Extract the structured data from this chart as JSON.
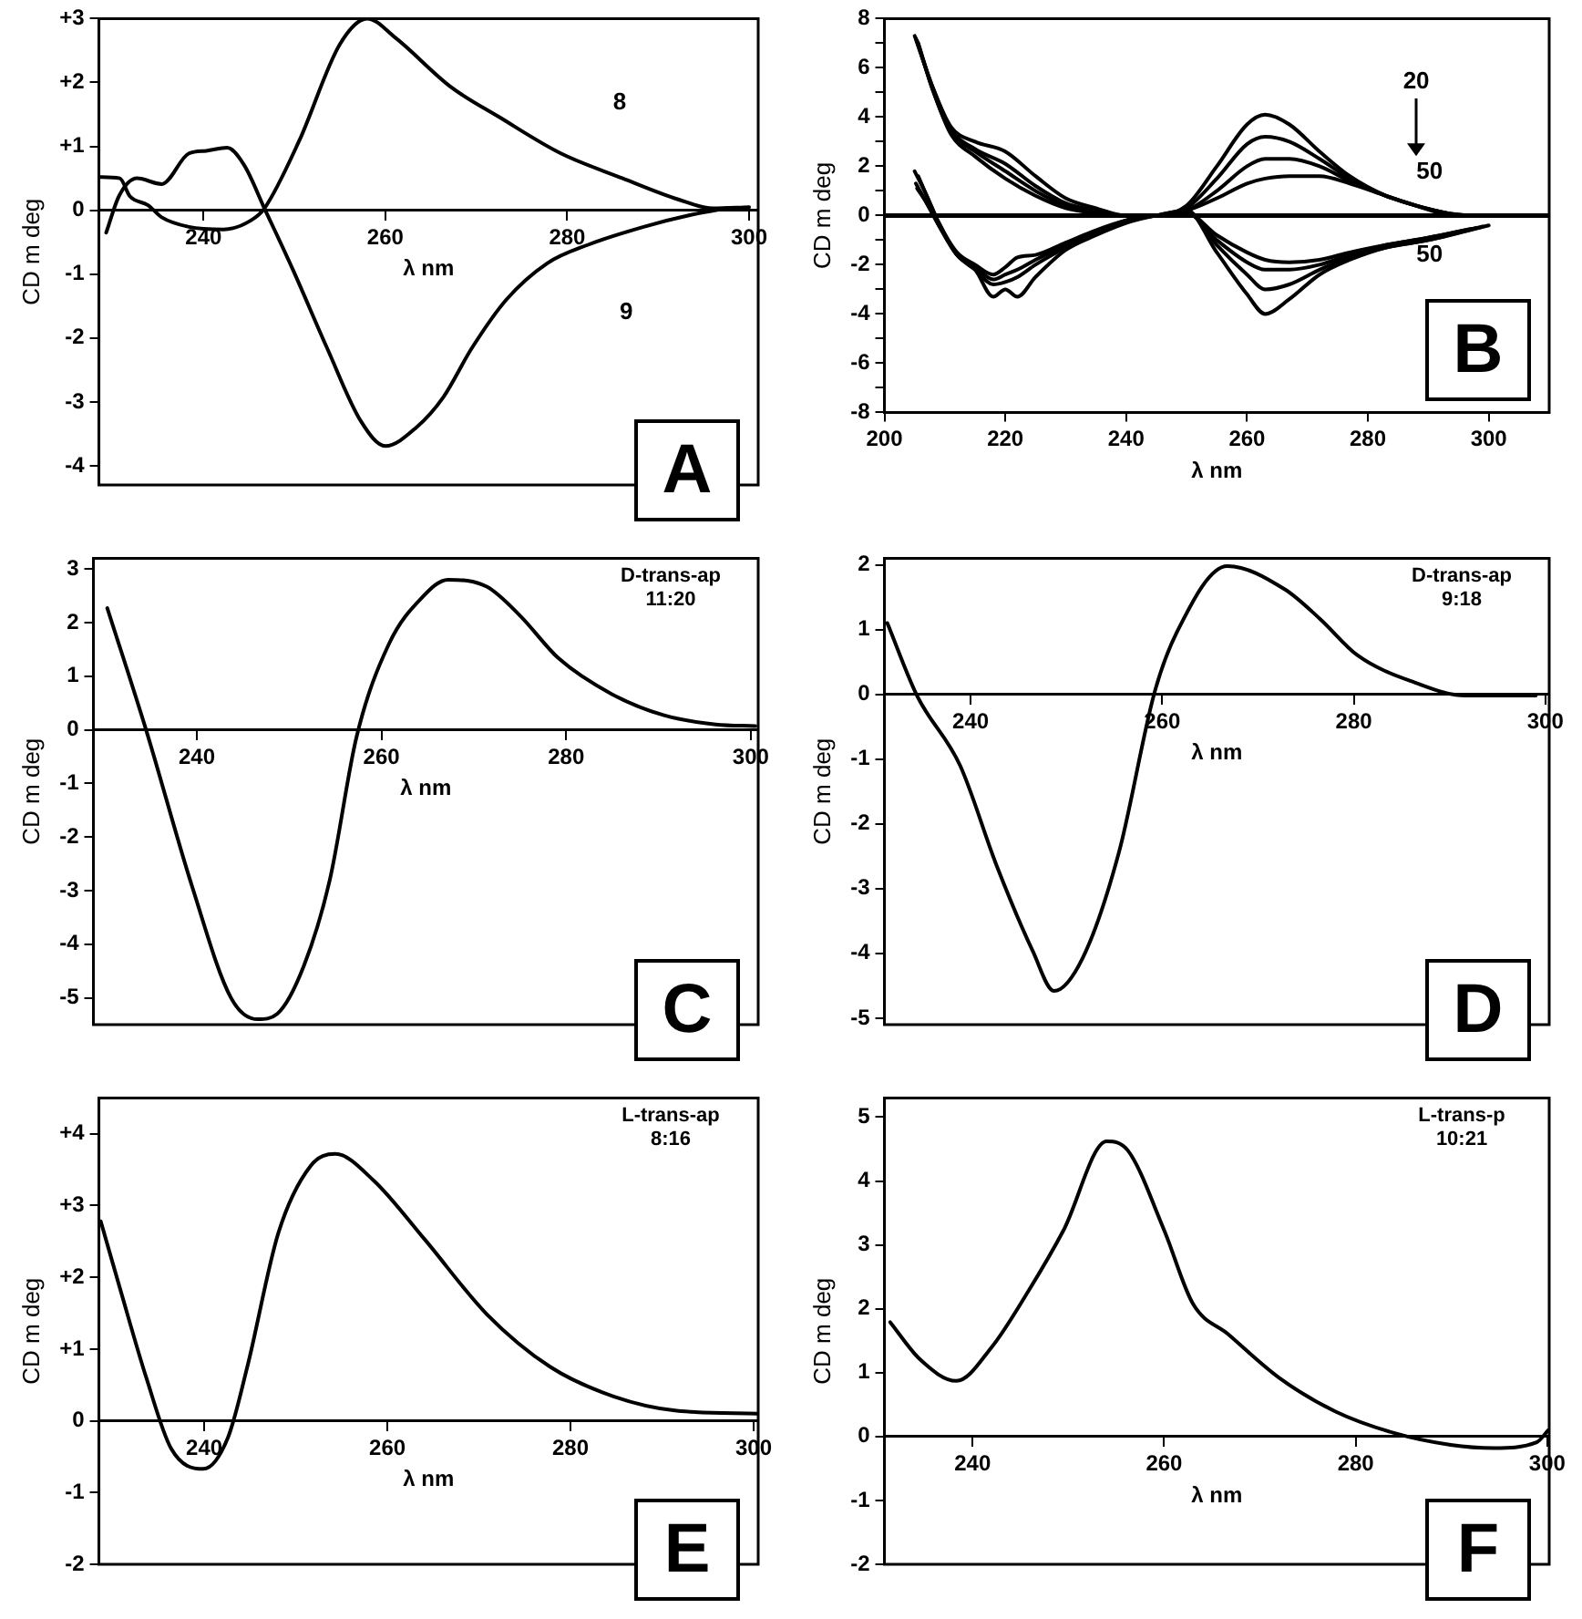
{
  "chart_data": [
    {
      "type": "line",
      "xlabel": "λ nm",
      "ylabel": "CD m deg",
      "xlim": [
        228.5,
        301
      ],
      "ylim": [
        -4.3,
        3
      ],
      "xticks": [
        240,
        260,
        280,
        300
      ],
      "yticks": [
        {
          "value": 3,
          "label": "+3"
        },
        {
          "value": 2,
          "label": "+2"
        },
        {
          "value": 1,
          "label": "+1"
        },
        0,
        -1,
        -2,
        -3,
        -4
      ],
      "series": [
        {
          "color": "#000000",
          "x": [
            228.6,
            230.8,
            231.9,
            233.9,
            235.4,
            238.4,
            242.2,
            245.2,
            246.7,
            250.5,
            255,
            258,
            261.1,
            267.2,
            272.5,
            279.3,
            286.1,
            292.2,
            296,
            300
          ],
          "values": [
            0.52,
            0.5,
            0.22,
            0.08,
            -0.11,
            -0.26,
            -0.3,
            -0.16,
            0.03,
            1.08,
            2.6,
            3.0,
            2.7,
            1.93,
            1.46,
            0.89,
            0.5,
            0.17,
            0.03,
            0.05
          ]
        },
        {
          "color": "#000000",
          "x": [
            229.3,
            230.7,
            232.7,
            235.4,
            238.4,
            240.3,
            242.6,
            244.5,
            246.7,
            249.8,
            253.6,
            257.3,
            260,
            263.4,
            266.4,
            269.5,
            273.3,
            277.8,
            282.3,
            288.4,
            293.7,
            297.5
          ],
          "values": [
            -0.35,
            0.22,
            0.5,
            0.41,
            0.89,
            0.93,
            0.98,
            0.7,
            0.03,
            -0.92,
            -2.16,
            -3.3,
            -3.69,
            -3.4,
            -2.92,
            -2.16,
            -1.4,
            -0.83,
            -0.54,
            -0.26,
            -0.07,
            0.03
          ]
        }
      ],
      "annotations": [
        "A",
        "8",
        "9"
      ]
    },
    {
      "type": "line",
      "xlabel": "λ nm",
      "ylabel": "CD m deg",
      "xlim": [
        200,
        310
      ],
      "ylim": [
        -8,
        8
      ],
      "xticks": [
        200,
        220,
        240,
        260,
        280,
        300
      ],
      "yticks": [
        8,
        {
          "value": 7,
          "label": null
        },
        6,
        {
          "value": 5,
          "label": null
        },
        4,
        {
          "value": 3,
          "label": null
        },
        2,
        {
          "value": 1,
          "label": null
        },
        0,
        {
          "value": -1,
          "label": null
        },
        -2,
        {
          "value": -3,
          "label": null
        },
        -4,
        {
          "value": -5,
          "label": null
        },
        -6,
        {
          "value": -7,
          "label": null
        },
        -8
      ],
      "ref_lines": [
        {
          "axis": "y",
          "value": 0
        }
      ],
      "series": [
        {
          "color": "#000000",
          "x": [
            205,
            208,
            211,
            215,
            220,
            225,
            230,
            235,
            240,
            245,
            250,
            255,
            260,
            263,
            267,
            272,
            277,
            283,
            288,
            293,
            297
          ],
          "values": [
            7.3,
            5.2,
            3.6,
            3.0,
            2.6,
            1.6,
            0.7,
            0.3,
            0.0,
            0.0,
            0.4,
            2.0,
            3.7,
            4.1,
            3.7,
            2.6,
            1.6,
            0.8,
            0.4,
            0.1,
            0.0
          ]
        },
        {
          "color": "#000000",
          "x": [
            205.2,
            208,
            211,
            215,
            220,
            225,
            230,
            235,
            240,
            245,
            250,
            255,
            260,
            263,
            267,
            272,
            277,
            283,
            288,
            293,
            296
          ],
          "values": [
            7.2,
            5.2,
            3.5,
            2.7,
            2.1,
            1.2,
            0.5,
            0.2,
            0.0,
            0.0,
            0.3,
            1.5,
            2.9,
            3.2,
            3.0,
            2.3,
            1.5,
            0.8,
            0.4,
            0.1,
            0.0
          ]
        },
        {
          "color": "#000000",
          "x": [
            205.4,
            208,
            211,
            215,
            220,
            225,
            230,
            235,
            240,
            245,
            250,
            255,
            260,
            263,
            267,
            272,
            277,
            283,
            288,
            293,
            295
          ],
          "values": [
            7.1,
            5.1,
            3.4,
            2.6,
            1.8,
            1.0,
            0.4,
            0.1,
            0.0,
            0.0,
            0.2,
            1.0,
            2.0,
            2.3,
            2.3,
            2.0,
            1.4,
            0.8,
            0.4,
            0.1,
            0.0
          ]
        },
        {
          "color": "#000000",
          "x": [
            205.6,
            208,
            211,
            215,
            220,
            225,
            230,
            235,
            240,
            245,
            250,
            255,
            260,
            263,
            267,
            272,
            277,
            283,
            288,
            292,
            294
          ],
          "values": [
            7.0,
            5.1,
            3.3,
            2.4,
            1.5,
            0.8,
            0.3,
            0.1,
            0.0,
            0.0,
            0.2,
            0.7,
            1.3,
            1.5,
            1.6,
            1.6,
            1.3,
            0.8,
            0.4,
            0.1,
            0.0
          ]
        },
        {
          "color": "#000000",
          "x": [
            205,
            207,
            209,
            212,
            215,
            218,
            220,
            222,
            225,
            230,
            235,
            240,
            245,
            250,
            255,
            260,
            263,
            267,
            272,
            277,
            283,
            290,
            298
          ],
          "values": [
            1.8,
            0.8,
            -0.3,
            -1.5,
            -2.0,
            -2.4,
            -2.1,
            -1.7,
            -1.6,
            -1.1,
            -0.6,
            -0.2,
            0.0,
            0.1,
            -0.8,
            -1.5,
            -1.8,
            -1.9,
            -1.8,
            -1.5,
            -1.2,
            -0.9,
            -0.5
          ]
        },
        {
          "color": "#000000",
          "x": [
            205.2,
            207,
            209,
            212,
            215,
            218,
            220,
            222,
            225,
            230,
            235,
            240,
            245,
            250,
            255,
            260,
            263,
            267,
            272,
            277,
            283,
            290,
            297
          ],
          "values": [
            1.3,
            0.5,
            -0.4,
            -1.6,
            -2.1,
            -2.6,
            -2.4,
            -2.2,
            -1.8,
            -1.2,
            -0.7,
            -0.2,
            0.0,
            0.1,
            -1.0,
            -1.9,
            -2.2,
            -2.2,
            -2.0,
            -1.6,
            -1.2,
            -0.9,
            -0.55
          ]
        },
        {
          "color": "#000000",
          "x": [
            205.4,
            207,
            209,
            212,
            215,
            218,
            220,
            222,
            225,
            230,
            235,
            240,
            245,
            250,
            255,
            260,
            263,
            267,
            272,
            277,
            283,
            290,
            299
          ],
          "values": [
            1.1,
            0.5,
            -0.4,
            -1.6,
            -2.2,
            -2.8,
            -2.7,
            -2.5,
            -2.0,
            -1.3,
            -0.7,
            -0.2,
            0.0,
            0.2,
            -1.2,
            -2.4,
            -3.0,
            -2.8,
            -2.2,
            -1.7,
            -1.3,
            -1.0,
            -0.45
          ]
        },
        {
          "color": "#000000",
          "x": [
            205.6,
            207,
            209,
            212,
            215,
            218,
            220,
            222,
            225,
            230,
            235,
            240,
            245,
            250,
            255,
            260,
            263,
            267,
            272,
            277,
            283,
            290,
            300
          ],
          "values": [
            1.6,
            0.8,
            -0.3,
            -1.6,
            -2.2,
            -3.3,
            -3.0,
            -3.3,
            -2.5,
            -1.4,
            -0.8,
            -0.3,
            0.0,
            0.2,
            -1.5,
            -3.2,
            -4.0,
            -3.4,
            -2.4,
            -1.8,
            -1.3,
            -1.0,
            -0.4
          ]
        }
      ],
      "annotations": [
        "B",
        "20",
        "50",
        "50"
      ]
    },
    {
      "type": "line",
      "xlabel": "λ nm",
      "ylabel": "CD m deg",
      "xlim": [
        228.8,
        300.8
      ],
      "ylim": [
        -5.5,
        3.2
      ],
      "xticks": [
        240,
        260,
        280,
        300
      ],
      "yticks": [
        3,
        2,
        1,
        0,
        -1,
        -2,
        -3,
        -4,
        -5
      ],
      "series": [
        {
          "color": "#000000",
          "x": [
            230.3,
            234.5,
            239.5,
            243.7,
            246.6,
            248.7,
            251.6,
            254.4,
            257.3,
            260.8,
            264.4,
            267.2,
            271.4,
            275,
            279.2,
            284.9,
            290.6,
            296.2,
            300.5
          ],
          "values": [
            2.27,
            0,
            -2.93,
            -5,
            -5.4,
            -5.3,
            -4.4,
            -2.8,
            -0.13,
            1.6,
            2.47,
            2.8,
            2.67,
            2.13,
            1.33,
            0.67,
            0.27,
            0.1,
            0.07
          ]
        }
      ],
      "annotations": [
        "C",
        "D-trans-ap\n11:20"
      ]
    },
    {
      "type": "line",
      "xlabel": "λ nm",
      "ylabel": "CD m deg",
      "xlim": [
        231,
        300.4
      ],
      "ylim": [
        -5.1,
        2.1
      ],
      "xticks": [
        240,
        260,
        280,
        300
      ],
      "yticks": [
        2,
        1,
        0,
        -1,
        -2,
        -3,
        -4,
        -5
      ],
      "series": [
        {
          "color": "#000000",
          "x": [
            231.3,
            234.4,
            238.9,
            242.7,
            246.5,
            248.7,
            251.7,
            255.5,
            259.2,
            261.5,
            266.8,
            272.8,
            276.5,
            280.4,
            286.4,
            291.6,
            299
          ],
          "values": [
            1.1,
            -0.02,
            -1.1,
            -2.64,
            -3.97,
            -4.58,
            -4.07,
            -2.43,
            0.03,
            0.95,
            1.98,
            1.62,
            1.16,
            0.6,
            0.18,
            -0.02,
            -0.02
          ]
        }
      ],
      "annotations": [
        "D",
        "D-trans-ap\n9:18"
      ]
    },
    {
      "type": "line",
      "xlabel": "λ nm",
      "ylabel": "CD m deg",
      "xlim": [
        228.5,
        300.5
      ],
      "ylim": [
        -2,
        4.5
      ],
      "xticks": [
        240,
        260,
        280,
        300
      ],
      "yticks": [
        {
          "value": 4,
          "label": "+4"
        },
        {
          "value": 3,
          "label": "+3"
        },
        {
          "value": 2,
          "label": "+2"
        },
        {
          "value": 1,
          "label": "+1"
        },
        0,
        -1,
        -2
      ],
      "series": [
        {
          "color": "#000000",
          "x": [
            228.7,
            230.9,
            233.7,
            236.4,
            239.9,
            242.6,
            244.7,
            248.1,
            251.6,
            254.3,
            258.5,
            264,
            270.9,
            277.8,
            284.7,
            291.6,
            300.4
          ],
          "values": [
            2.78,
            1.8,
            0.59,
            -0.39,
            -0.67,
            -0.23,
            0.75,
            2.62,
            3.55,
            3.72,
            3.35,
            2.54,
            1.48,
            0.75,
            0.34,
            0.14,
            0.1
          ]
        }
      ],
      "annotations": [
        "E",
        "L-trans-ap\n8:16"
      ]
    },
    {
      "type": "line",
      "xlabel": "λ nm",
      "ylabel": "CD m deg",
      "xlim": [
        230.8,
        300.2
      ],
      "ylim": [
        -2,
        5.3
      ],
      "xticks": [
        240,
        260,
        280,
        300
      ],
      "yticks": [
        5,
        4,
        3,
        2,
        1,
        0,
        -1,
        -2
      ],
      "series": [
        {
          "color": "#000000",
          "x": [
            231.4,
            234.5,
            238.3,
            242,
            245.8,
            249.5,
            254,
            256.2,
            260,
            263,
            266.7,
            272,
            277.9,
            283.9,
            289.9,
            294.4,
            298.9,
            300.1
          ],
          "values": [
            1.79,
            1.21,
            0.87,
            1.4,
            2.27,
            3.23,
            4.62,
            4.48,
            3.23,
            2.08,
            1.6,
            0.92,
            0.39,
            0.06,
            -0.13,
            -0.18,
            -0.09,
            0.1
          ]
        }
      ],
      "annotations": [
        "F",
        "L-trans-p\n10:21"
      ]
    }
  ]
}
